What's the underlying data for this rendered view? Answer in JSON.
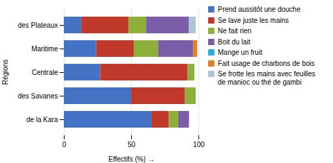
{
  "chart_data": {
    "type": "bar",
    "orientation": "horizontal",
    "stacked": true,
    "xlabel": "Effectifs (%)",
    "ylabel": "Régions",
    "categories": [
      "des Plateaux",
      "Maritime",
      "Centrale",
      "des Savanes",
      "de la Kara"
    ],
    "series": [
      {
        "name": "Prend aussitôt une douche",
        "color": "#4472c4",
        "values": [
          13,
          24,
          27,
          50,
          65
        ]
      },
      {
        "name": "Se lave juste les mains",
        "color": "#c0392b",
        "values": [
          35,
          28,
          65,
          40,
          13
        ]
      },
      {
        "name": "Ne  fait rien",
        "color": "#8db03a",
        "values": [
          13,
          18,
          5,
          8,
          7
        ]
      },
      {
        "name": "Boit du lait",
        "color": "#7b5ea7",
        "values": [
          32,
          26,
          0,
          0,
          8
        ]
      },
      {
        "name": "Mange un fruit",
        "color": "#29abe2",
        "values": [
          0,
          0,
          0,
          0,
          0
        ]
      },
      {
        "name": "Fait usage de charbons de bois",
        "color": "#e67e22",
        "values": [
          0,
          3,
          0,
          0,
          0
        ]
      },
      {
        "name": "Se frotte les mains avec feuilles\nde manioc ou thé de gambi",
        "color": "#aec6d8",
        "values": [
          5,
          0,
          0,
          0,
          0
        ]
      }
    ],
    "xlim": [
      0,
      100
    ],
    "xticks": [
      0,
      50,
      100
    ],
    "grid": true,
    "legend": "right"
  }
}
